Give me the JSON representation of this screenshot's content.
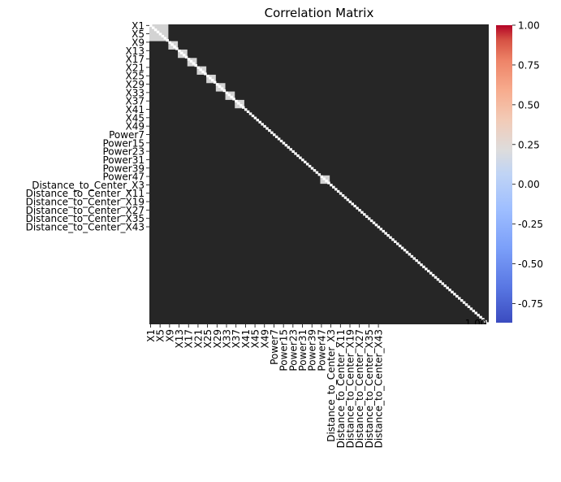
{
  "chart_data": {
    "type": "heatmap",
    "title": "Correlation Matrix",
    "xlabel": "",
    "ylabel": "",
    "colormap": "coolwarm",
    "vmin": -0.87,
    "vmax": 1.0,
    "colorbar_ticks": [
      1.0,
      0.75,
      0.5,
      0.25,
      0.0,
      -0.25,
      -0.5,
      -0.75
    ],
    "colorbar_tick_labels": [
      "1.00",
      "0.75",
      "0.50",
      "0.25",
      "0.00",
      "-0.25",
      "-0.50",
      "-0.75"
    ],
    "annotation_text_color": "#ffffff",
    "cell_background": "#262626",
    "n_variables": 143,
    "x_tick_labels": [
      "X1",
      "X5",
      "X9",
      "X13",
      "X17",
      "X21",
      "X25",
      "X29",
      "X33",
      "X37",
      "X41",
      "X45",
      "X49",
      "Power7",
      "Power15",
      "Power23",
      "Power31",
      "Power39",
      "Power47",
      "Distance_to_Center_X3",
      "Distance_to_Center_X11",
      "Distance_to_Center_X19",
      "Distance_to_Center_X27",
      "Distance_to_Center_X35",
      "Distance_to_Center_X43"
    ],
    "y_tick_labels": [
      "X1",
      "X5",
      "X9",
      "X13",
      "X17",
      "X21",
      "X25",
      "X29",
      "X33",
      "X37",
      "X41",
      "X45",
      "X49",
      "Power7",
      "Power15",
      "Power23",
      "Power31",
      "Power39",
      "Power47",
      "Distance_to_Center_X3",
      "Distance_to_Center_X11",
      "Distance_to_Center_X19",
      "Distance_to_Center_X27",
      "Distance_to_Center_X35",
      "Distance_to_Center_X43"
    ],
    "last_cell_annotation": "1.00",
    "visible_structure": {
      "diagonal_value": 1.0,
      "strong_correlation_blocks": [
        {
          "rows": [
            "X1",
            "X5"
          ],
          "cols": [
            "X1",
            "X5"
          ]
        },
        {
          "rows": [
            "X9"
          ],
          "cols": [
            "X9"
          ]
        },
        {
          "rows": [
            "X13"
          ],
          "cols": [
            "X13"
          ]
        },
        {
          "rows": [
            "X17"
          ],
          "cols": [
            "X17"
          ]
        },
        {
          "rows": [
            "X21"
          ],
          "cols": [
            "X21"
          ]
        },
        {
          "rows": [
            "X25"
          ],
          "cols": [
            "X25"
          ]
        },
        {
          "rows": [
            "X29"
          ],
          "cols": [
            "X29"
          ]
        },
        {
          "rows": [
            "X33"
          ],
          "cols": [
            "X33"
          ]
        },
        {
          "rows": [
            "X37"
          ],
          "cols": [
            "X37"
          ]
        },
        {
          "rows": [
            "Power47"
          ],
          "cols": [
            "Power47"
          ]
        }
      ]
    }
  }
}
